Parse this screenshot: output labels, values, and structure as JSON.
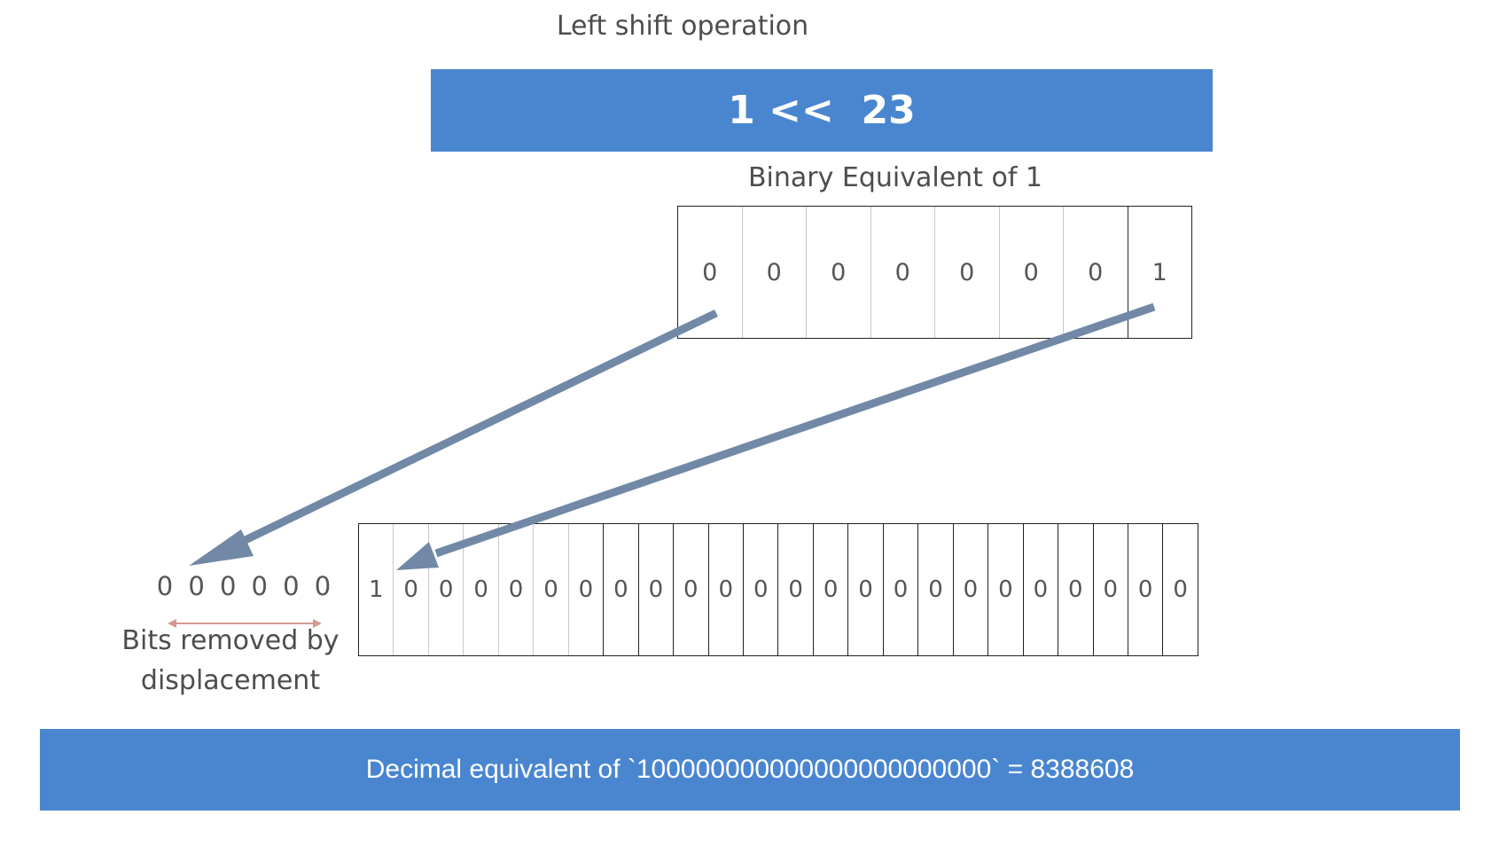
{
  "title": "Left shift operation",
  "operation": "1 <<  23",
  "binary_label": "Binary Equivalent of 1",
  "source_bits": [
    "0",
    "0",
    "0",
    "0",
    "0",
    "0",
    "0",
    "1"
  ],
  "result_bits": [
    "1",
    "0",
    "0",
    "0",
    "0",
    "0",
    "0",
    "0",
    "0",
    "0",
    "0",
    "0",
    "0",
    "0",
    "0",
    "0",
    "0",
    "0",
    "0",
    "0",
    "0",
    "0",
    "0",
    "0"
  ],
  "removed_bits": [
    "0",
    "0",
    "0",
    "0",
    "0",
    "0"
  ],
  "removed_label": "Bits removed by displacement",
  "decimal_text": "Decimal equivalent of `100000000000000000000000` = 8388608",
  "colors": {
    "banner": "#4a86cf",
    "arrow": "#7189a6",
    "range_arrow": "#d49a92"
  }
}
